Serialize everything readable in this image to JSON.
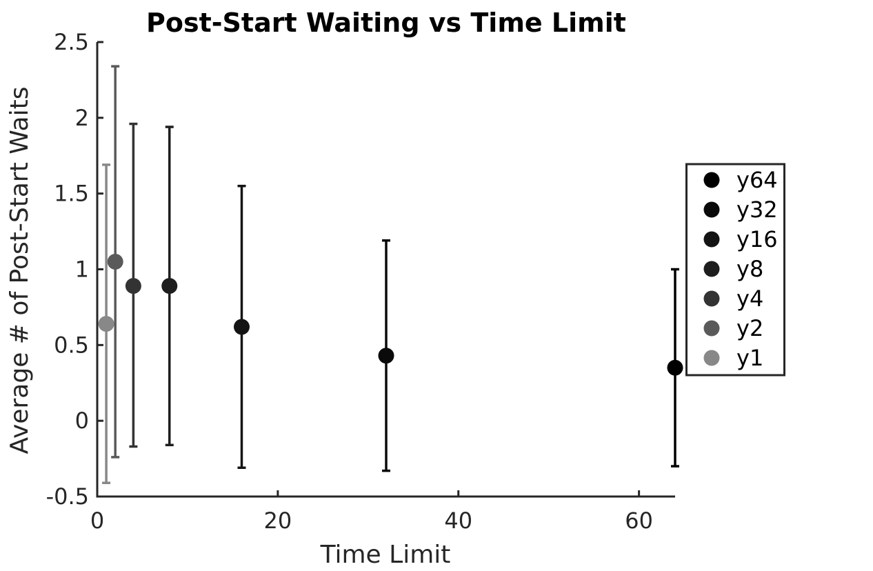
{
  "chart_data": {
    "type": "scatter",
    "title": "Post-Start Waiting vs Time Limit",
    "xlabel": "Time Limit",
    "ylabel": "Average # of Post-Start Waits",
    "xlim": [
      0,
      64
    ],
    "ylim": [
      -0.5,
      2.5
    ],
    "xticks": [
      0,
      20,
      40,
      60
    ],
    "xtick_labels": [
      "0",
      "20",
      "40",
      "60"
    ],
    "yticks": [
      -0.5,
      0,
      0.5,
      1,
      1.5,
      2,
      2.5
    ],
    "ytick_labels": [
      "-0.5",
      "0",
      "0.5",
      "1",
      "1.5",
      "2",
      "2.5"
    ],
    "error_bars": true,
    "grid": false,
    "legend_position": "right",
    "series": [
      {
        "name": "y64",
        "x": 64,
        "y": 0.35,
        "err_low": -0.3,
        "err_high": 1.0,
        "color": "#000000"
      },
      {
        "name": "y32",
        "x": 32,
        "y": 0.43,
        "err_low": -0.33,
        "err_high": 1.19,
        "color": "#0a0a0a"
      },
      {
        "name": "y16",
        "x": 16,
        "y": 0.62,
        "err_low": -0.31,
        "err_high": 1.55,
        "color": "#141414"
      },
      {
        "name": "y8",
        "x": 8,
        "y": 0.89,
        "err_low": -0.16,
        "err_high": 1.94,
        "color": "#1e1e1e"
      },
      {
        "name": "y4",
        "x": 4,
        "y": 0.89,
        "err_low": -0.17,
        "err_high": 1.96,
        "color": "#333333"
      },
      {
        "name": "y2",
        "x": 2,
        "y": 1.05,
        "err_low": -0.24,
        "err_high": 2.34,
        "color": "#5a5a5a"
      },
      {
        "name": "y1",
        "x": 1,
        "y": 0.64,
        "err_low": -0.41,
        "err_high": 1.69,
        "color": "#888888"
      }
    ]
  }
}
